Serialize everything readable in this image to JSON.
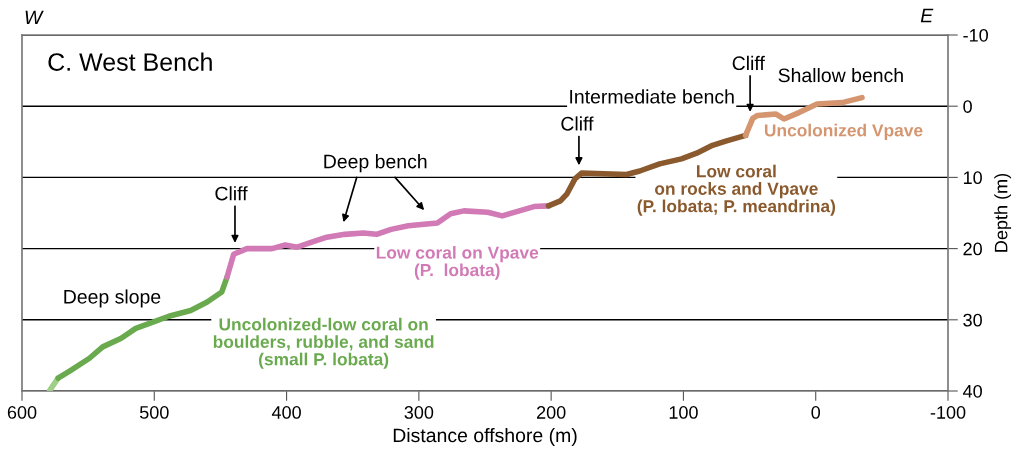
{
  "chart_data": {
    "type": "line",
    "title": "C. West Bench",
    "xlabel": "Distance offshore (m)",
    "ylabel": "Depth (m)",
    "xlim": [
      600,
      -100
    ],
    "xticks": [
      600,
      500,
      400,
      300,
      200,
      100,
      0,
      -100
    ],
    "ylim": [
      40,
      -10
    ],
    "yticks": [
      -10,
      0,
      10,
      20,
      30,
      40
    ],
    "grid": "y",
    "legend": false,
    "marker": "none",
    "line_style": "solid",
    "series": [
      {
        "color": "#9fce86",
        "x": [
          579,
          572.7
        ],
        "values": [
          39.9,
          38.2
        ]
      },
      {
        "name": "Uncolonized-low coral on\nboulders, rubble, and sand\n(small P. lobata)",
        "color": "#6aaa4f",
        "x": [
          572.7,
          564,
          549,
          539,
          525,
          514,
          499,
          489,
          472.5,
          460,
          449,
          445
        ],
        "values": [
          38.2,
          37.2,
          35.4,
          33.8,
          32.6,
          31.2,
          30.2,
          29.5,
          28.7,
          27.5,
          26.1,
          24.0
        ]
      },
      {
        "name": "Low coral on Vpave\n(P.  lobata)",
        "color": "#d17ab5",
        "x": [
          445,
          440,
          430,
          411,
          401,
          392,
          381,
          369.6,
          356,
          342,
          332,
          321,
          308,
          286,
          276,
          266,
          248,
          237,
          226,
          213,
          202
        ],
        "values": [
          24.0,
          20.8,
          20.0,
          20.0,
          19.5,
          19.8,
          19.1,
          18.4,
          18.0,
          17.8,
          18.0,
          17.3,
          16.8,
          16.4,
          15.1,
          14.7,
          14.9,
          15.4,
          14.8,
          14.1,
          14.0
        ]
      },
      {
        "name": "Low coral\non rocks and Vpave\n(P. lobata; P. meandrina)",
        "color": "#8a5a2e",
        "x": [
          202,
          193,
          188,
          182,
          177,
          143,
          133,
          118,
          101.5,
          90,
          78,
          68,
          53
        ],
        "values": [
          14.0,
          13.3,
          12.3,
          10.2,
          9.4,
          9.6,
          9.1,
          8.1,
          7.4,
          6.6,
          5.5,
          4.9,
          4.1
        ]
      },
      {
        "name": "Uncolonized Vpave",
        "color": "#d4956f",
        "x": [
          53,
          47.6,
          44,
          30,
          24,
          12.6,
          -1,
          -20,
          -35
        ],
        "values": [
          4.1,
          1.7,
          1.3,
          1.1,
          1.8,
          0.9,
          -0.3,
          -0.5,
          -1.2
        ]
      }
    ],
    "annotations": [
      "W",
      "E",
      "Deep slope",
      "Cliff",
      "Deep bench",
      "Cliff",
      "Intermediate bench",
      "Cliff",
      "Shallow bench"
    ]
  }
}
